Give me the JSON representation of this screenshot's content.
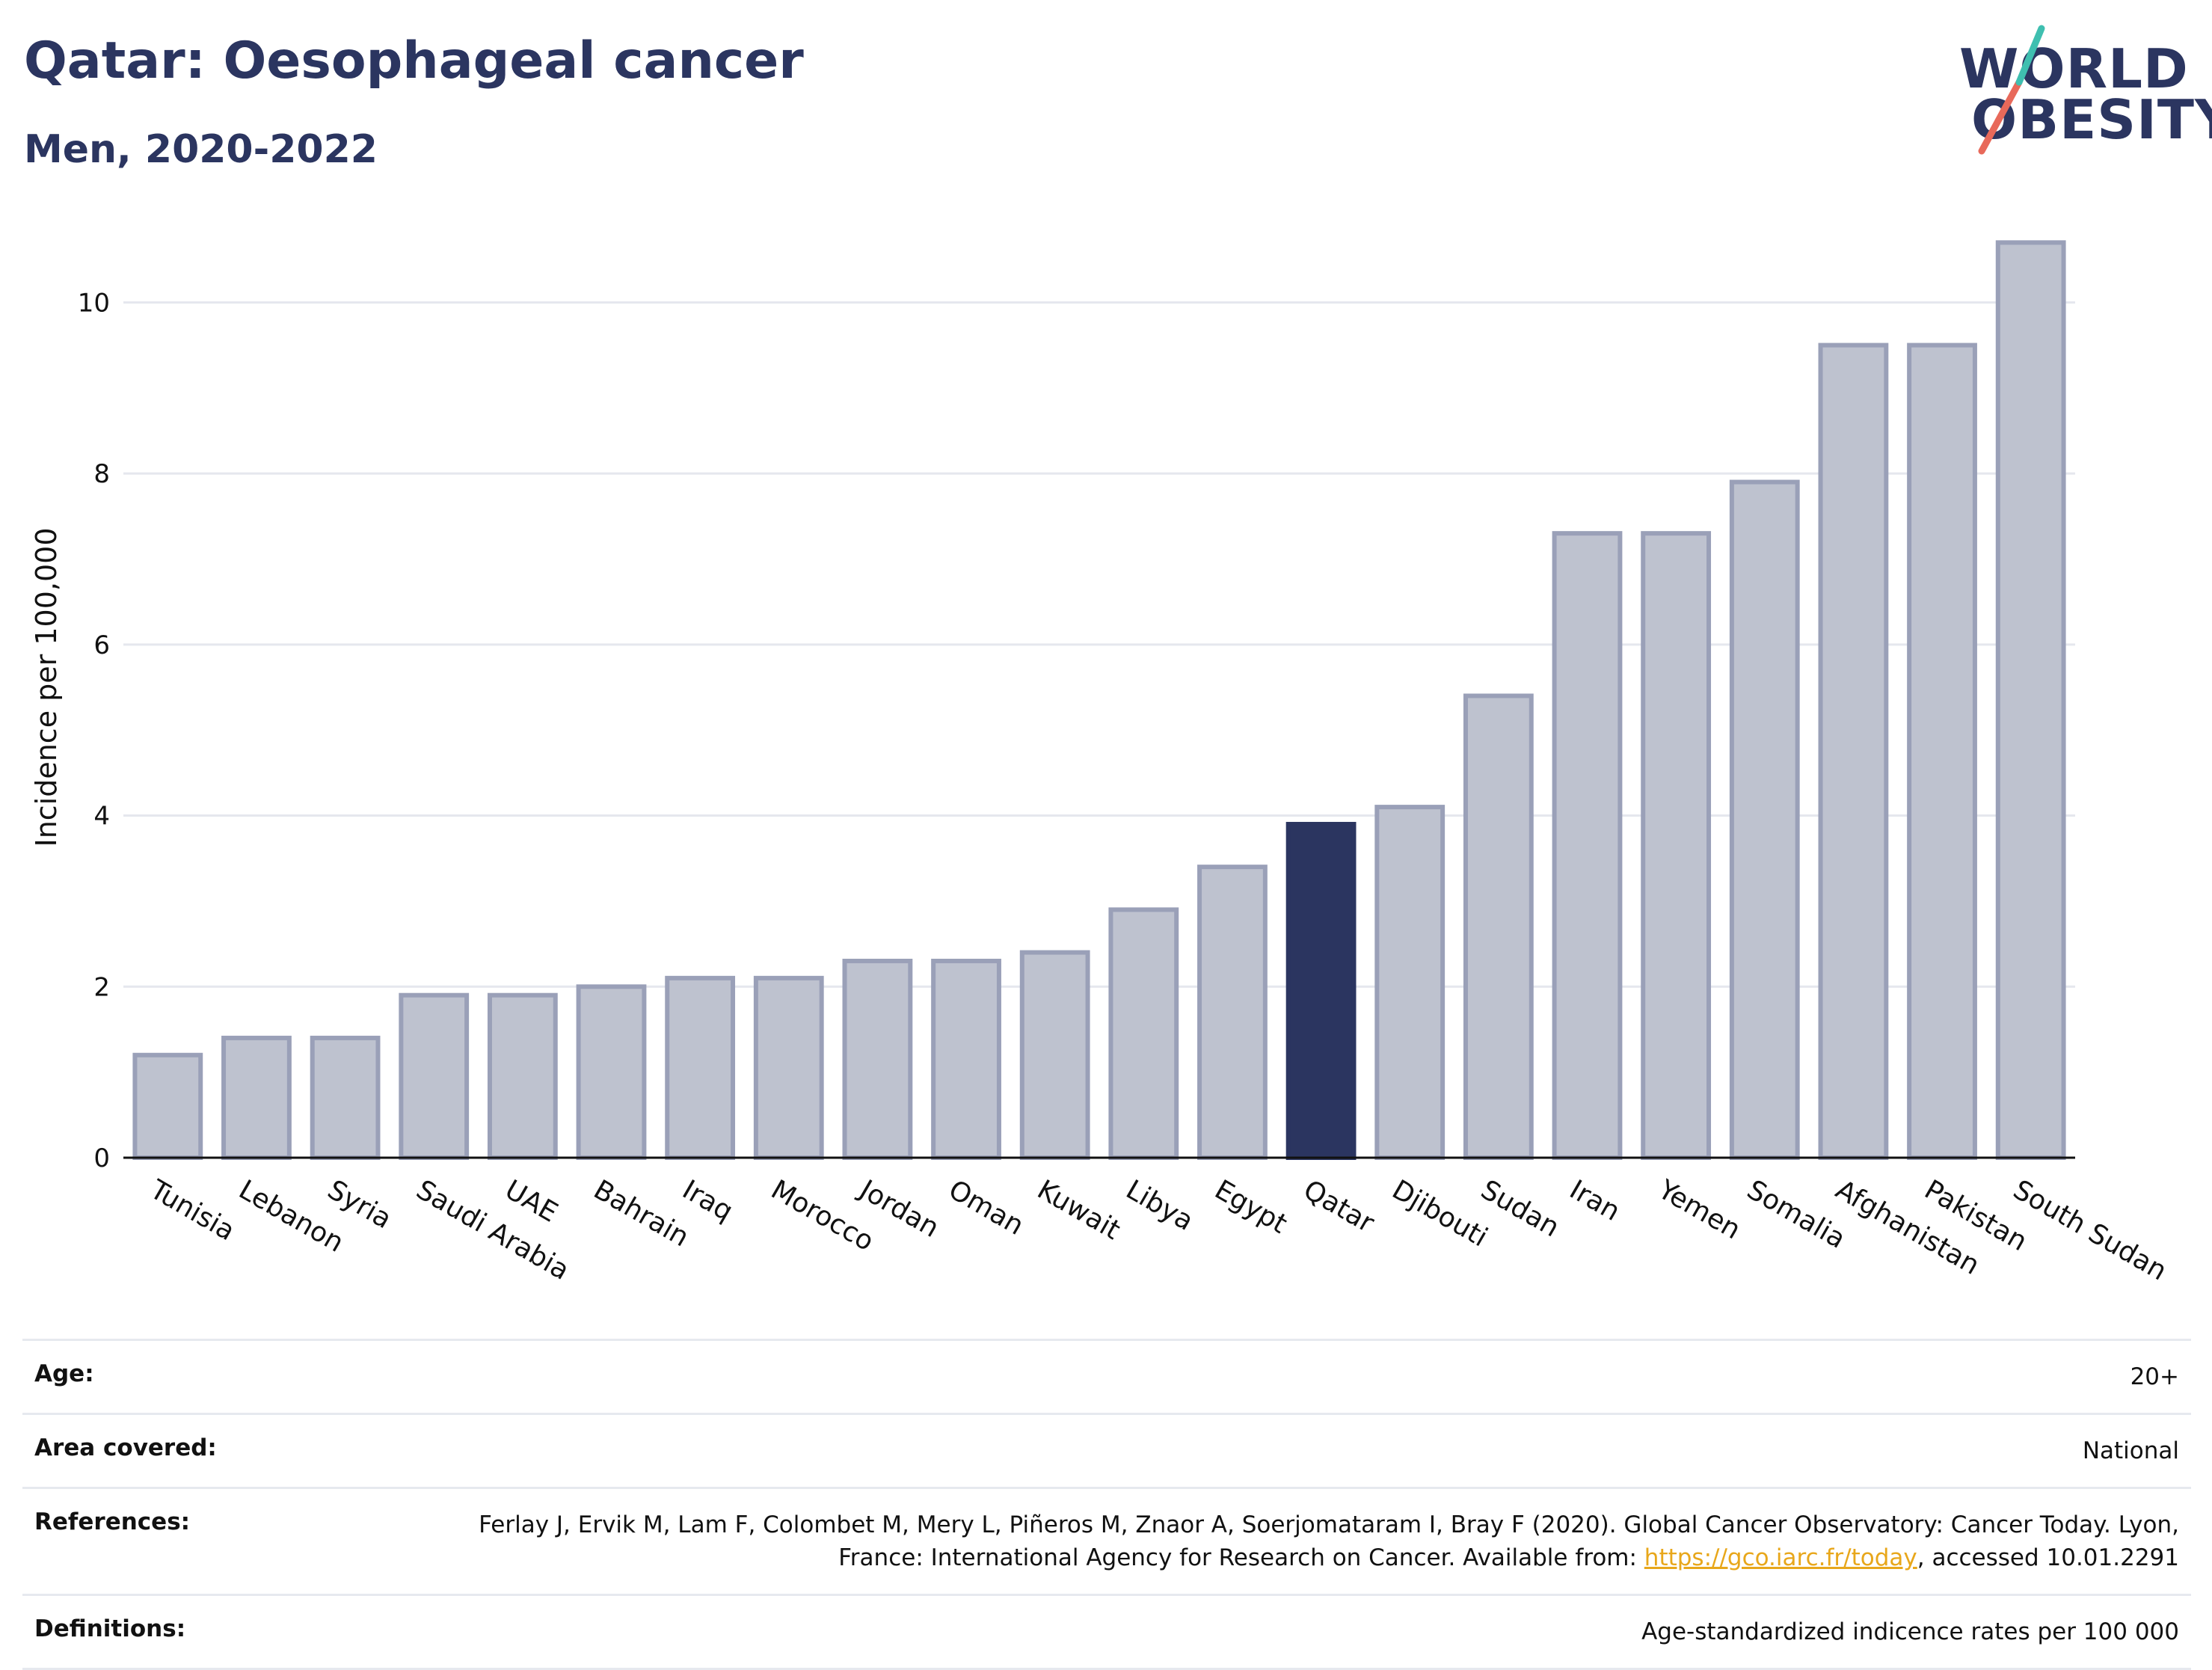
{
  "header": {
    "title": "Qatar: Oesophageal cancer",
    "subtitle": "Men, 2020-2022"
  },
  "logo": {
    "line1": "WORLD",
    "line2": "OBESITY",
    "slash_colors": [
      "#e8695a",
      "#3fbfb0"
    ]
  },
  "colors": {
    "highlight": "#2b3560",
    "bar_fill": "#bec2cf",
    "bar_stroke": "#9aa0b8",
    "gridline": "#e5e7ee"
  },
  "chart_data": {
    "type": "bar",
    "title": "Qatar: Oesophageal cancer",
    "subtitle": "Men, 2020-2022",
    "ylabel": "Incidence per 100,000",
    "xlabel": "",
    "ylim": [
      0,
      11
    ],
    "yticks": [
      0,
      2,
      4,
      6,
      8,
      10
    ],
    "grid": true,
    "highlight": "Qatar",
    "categories": [
      "Tunisia",
      "Lebanon",
      "Syria",
      "Saudi Arabia",
      "UAE",
      "Bahrain",
      "Iraq",
      "Morocco",
      "Jordan",
      "Oman",
      "Kuwait",
      "Libya",
      "Egypt",
      "Qatar",
      "Djibouti",
      "Sudan",
      "Iran",
      "Yemen",
      "Somalia",
      "Afghanistan",
      "Pakistan",
      "South Sudan"
    ],
    "values": [
      1.2,
      1.4,
      1.4,
      1.9,
      1.9,
      2.0,
      2.1,
      2.1,
      2.3,
      2.3,
      2.4,
      2.9,
      3.4,
      3.9,
      4.1,
      5.4,
      7.3,
      7.3,
      7.9,
      9.5,
      9.5,
      10.7
    ]
  },
  "info": {
    "age_label": "Age:",
    "age_value": "20+",
    "area_label": "Area covered:",
    "area_value": "National",
    "references_label": "References:",
    "references_text": "Ferlay J, Ervik M, Lam F, Colombet M, Mery L, Piñeros M, Znaor A, Soerjomataram I, Bray F (2020). Global Cancer Observatory: Cancer Today. Lyon, France: International Agency for Research on Cancer. Available from: ",
    "references_link": "https://gco.iarc.fr/today",
    "references_suffix": ", accessed 10.01.2291",
    "definitions_label": "Definitions:",
    "definitions_value": "Age-standardized indicence rates per 100 000"
  }
}
